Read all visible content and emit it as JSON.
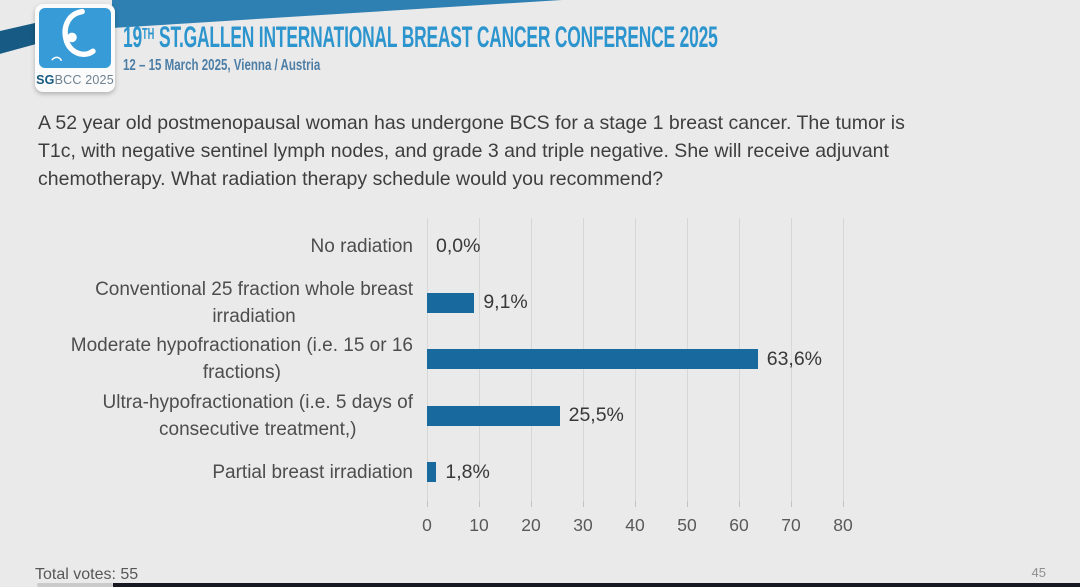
{
  "header": {
    "logo": {
      "bold": "SG",
      "rest": "BCC 2025"
    },
    "title": {
      "number": "19",
      "ordinal": "TH",
      "rest": " ST.GALLEN INTERNATIONAL BREAST CANCER CONFERENCE 2025"
    },
    "subtitle": "12 – 15 March 2025, Vienna / Austria",
    "title_color": "#2d95ce"
  },
  "question": {
    "lines": [
      "A 52 year old postmenopausal woman has undergone BCS for a stage 1 breast cancer.  The tumor is",
      "T1c, with negative sentinel lymph nodes, and grade 3 and triple negative.  She will receive adjuvant",
      "chemotherapy. What radiation therapy schedule would you recommend?"
    ]
  },
  "chart_data": {
    "type": "bar",
    "orientation": "horizontal",
    "title": "",
    "xlabel": "",
    "ylabel": "",
    "categories": [
      "No radiation",
      "Conventional 25 fraction whole breast irradiation",
      "Moderate hypofractionation (i.e. 15 or 16 fractions)",
      "Ultra-hypofractionation (i.e. 5 days of consecutive treatment,)",
      "Partial breast irradiation"
    ],
    "category_lines": [
      [
        "No radiation"
      ],
      [
        "Conventional 25 fraction whole breast",
        "irradiation"
      ],
      [
        "Moderate hypofractionation (i.e. 15 or 16",
        "fractions)"
      ],
      [
        "Ultra-hypofractionation (i.e. 5 days of",
        "consecutive treatment,)"
      ],
      [
        "Partial breast irradiation"
      ]
    ],
    "values": [
      0.0,
      9.1,
      63.6,
      25.5,
      1.8
    ],
    "value_labels": [
      "0,0%",
      "9,1%",
      "63,6%",
      "25,5%",
      "1,8%"
    ],
    "x_ticks": [
      0,
      10,
      20,
      30,
      40,
      50,
      60,
      70,
      80
    ],
    "xlim": [
      0,
      85
    ],
    "grid": true,
    "legend": false,
    "bar_color": "#186a9e",
    "gridline_color": "#d7d7d7"
  },
  "footer": {
    "total_votes": "Total votes: 55",
    "page_number": "45"
  }
}
